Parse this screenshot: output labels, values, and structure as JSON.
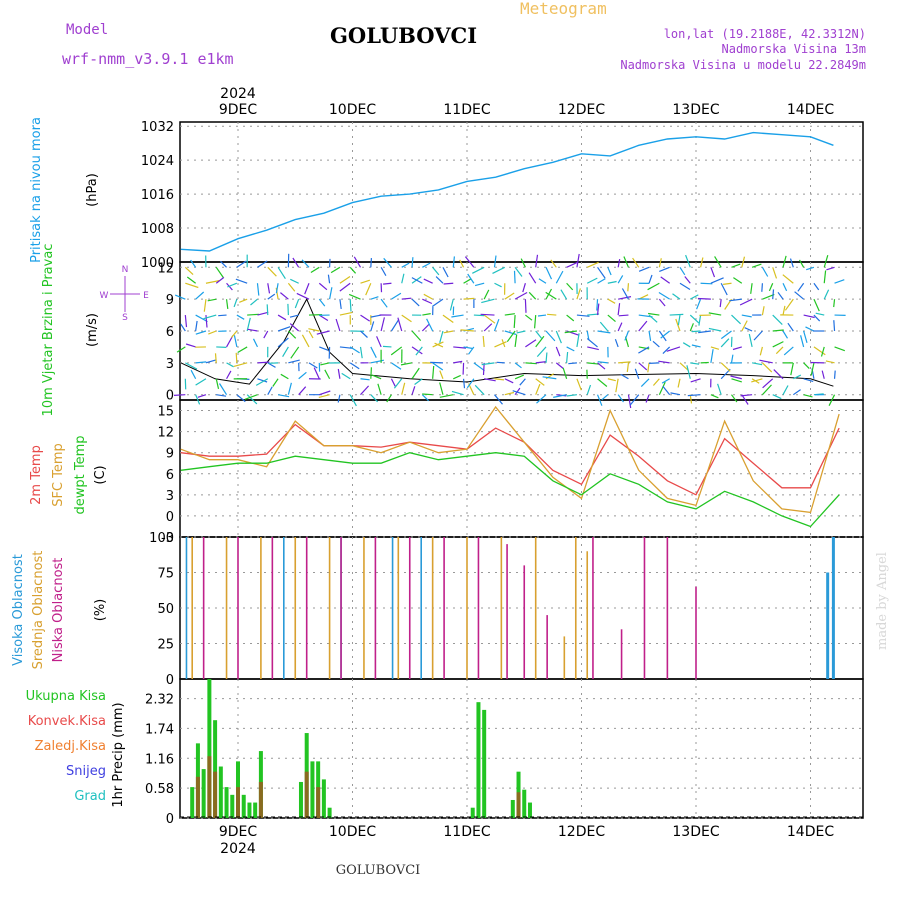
{
  "header": {
    "model_label": "Model",
    "model_name": "wrf-nmm_v3.9.1  e1km",
    "location": "GOLUBOVCI",
    "meteogram": "Meteogram",
    "coords": "lon,lat (19.2188E, 42.3312N)",
    "elevation": "Nadmorska Visina 13m",
    "model_elevation": "Nadmorska Visina u modelu 22.2849m",
    "year_top": "2024",
    "year_bottom": "2024",
    "footer": "GOLUBOVCI",
    "credit": "made by Angel"
  },
  "colors": {
    "pressure": "#1aa0e8",
    "temp2m": "#e84a4a",
    "sfc_temp": "#d9a030",
    "dewpt": "#22c422",
    "high_cloud": "#2a9ad8",
    "mid_cloud": "#d8a030",
    "low_cloud": "#c0208a",
    "total_precip": "#22c422",
    "conv_precip": "#8a6a20",
    "purple_text": "#a040d0",
    "orange_text": "#f0c060"
  },
  "chart_data": [
    {
      "type": "line",
      "title": "Pritisak na nivou mora",
      "ylabel": "(hPa)",
      "ylim": [
        1000,
        1033
      ],
      "yticks": [
        "1000",
        "1008",
        "1016",
        "1024",
        "1032"
      ],
      "xlabels": [
        "9DEC",
        "10DEC",
        "11DEC",
        "12DEC",
        "13DEC",
        "14DEC"
      ],
      "series": [
        {
          "x": [
            0.5,
            0.75,
            1.0,
            1.25,
            1.5,
            1.75,
            2.0,
            2.25,
            2.5,
            2.75,
            3.0,
            3.25,
            3.5,
            3.75,
            4.0,
            4.25,
            4.5,
            4.75,
            5.0,
            5.25,
            5.5,
            5.75,
            6.0,
            6.2
          ],
          "values": [
            1003,
            1002.6,
            1005.5,
            1007.5,
            1010,
            1011.5,
            1014,
            1015.5,
            1016,
            1017,
            1019,
            1020,
            1022,
            1023.5,
            1025.5,
            1025,
            1027.5,
            1029,
            1029.5,
            1029,
            1030.5,
            1030,
            1029.5,
            1027.5
          ]
        }
      ]
    },
    {
      "type": "line",
      "title": "10m Vjetar Brzina i Pravac",
      "ylabel": "(m/s)",
      "ylim": [
        -0.5,
        12.5
      ],
      "yticks": [
        "0",
        "3",
        "6",
        "9",
        "12"
      ],
      "compass": [
        "N",
        "S",
        "W",
        "E"
      ],
      "series": [
        {
          "name": "speed",
          "x": [
            0.5,
            0.8,
            1.1,
            1.4,
            1.6,
            1.8,
            2.0,
            2.5,
            3.0,
            3.5,
            4.0,
            4.5,
            5.0,
            5.5,
            6.0,
            6.2
          ],
          "values": [
            3,
            1.5,
            1,
            5,
            9,
            4,
            2,
            1.5,
            1.2,
            2,
            1.8,
            1.9,
            2,
            1.8,
            1.5,
            0.8
          ]
        }
      ]
    },
    {
      "type": "line",
      "ylabel": "(C)",
      "ylim": [
        -3,
        16.5
      ],
      "yticks": [
        "-3",
        "0",
        "3",
        "6",
        "9",
        "12",
        "15"
      ],
      "series": [
        {
          "name": "2m Temp",
          "x": [
            0.5,
            0.75,
            1.0,
            1.25,
            1.5,
            1.75,
            2.0,
            2.25,
            2.5,
            2.75,
            3.0,
            3.25,
            3.5,
            3.75,
            4.0,
            4.25,
            4.5,
            4.75,
            5.0,
            5.25,
            5.5,
            5.75,
            6.0,
            6.25
          ],
          "values": [
            9,
            8.5,
            8.5,
            8.8,
            13,
            10,
            10,
            9.8,
            10.5,
            10,
            9.5,
            12.5,
            10.5,
            6.5,
            4.5,
            11.5,
            8.5,
            5,
            3,
            11,
            7.5,
            4,
            4,
            12.5
          ]
        },
        {
          "name": "SFC Temp",
          "x": [
            0.5,
            0.75,
            1.0,
            1.25,
            1.5,
            1.75,
            2.0,
            2.25,
            2.5,
            2.75,
            3.0,
            3.25,
            3.5,
            3.75,
            4.0,
            4.25,
            4.5,
            4.75,
            5.0,
            5.25,
            5.5,
            5.75,
            6.0,
            6.25
          ],
          "values": [
            9.5,
            8,
            8,
            7,
            13.5,
            10,
            10,
            9,
            10.5,
            9,
            9.5,
            15.5,
            10.5,
            5.5,
            2.5,
            15,
            6.5,
            2.5,
            1.5,
            13.5,
            5,
            1,
            0.5,
            14.5
          ]
        },
        {
          "name": "dewpt Temp",
          "x": [
            0.5,
            0.75,
            1.0,
            1.25,
            1.5,
            1.75,
            2.0,
            2.25,
            2.5,
            2.75,
            3.0,
            3.25,
            3.5,
            3.75,
            4.0,
            4.25,
            4.5,
            4.75,
            5.0,
            5.25,
            5.5,
            5.75,
            6.0,
            6.25
          ],
          "values": [
            6.5,
            7,
            7.5,
            7.5,
            8.5,
            8,
            7.5,
            7.5,
            9,
            8,
            8.5,
            9,
            8.5,
            5,
            3,
            6,
            4.5,
            2,
            1,
            3.5,
            2,
            0,
            -1.5,
            3
          ]
        }
      ]
    },
    {
      "type": "bar",
      "ylabel": "(%)",
      "ylim": [
        0,
        100
      ],
      "yticks": [
        "0",
        "25",
        "50",
        "75",
        "100"
      ],
      "series": [
        {
          "name": "Visoka Oblacnost",
          "x": [
            0.55,
            1.4,
            1.9,
            2.35,
            2.6,
            6.15,
            6.2
          ],
          "values": [
            100,
            100,
            100,
            100,
            100,
            75,
            100
          ]
        },
        {
          "name": "Srednja Oblacnost",
          "x": [
            0.6,
            0.9,
            1.2,
            1.5,
            1.8,
            2.1,
            2.4,
            2.7,
            3.0,
            3.3,
            3.6,
            3.85,
            3.95,
            4.05
          ],
          "values": [
            100,
            100,
            100,
            100,
            100,
            100,
            100,
            100,
            100,
            100,
            100,
            30,
            100,
            90
          ]
        },
        {
          "name": "Niska Oblacnost",
          "x": [
            0.7,
            1.0,
            1.3,
            1.6,
            1.9,
            2.2,
            2.5,
            2.8,
            3.1,
            3.35,
            3.5,
            3.7,
            4.1,
            4.35,
            4.55,
            4.75,
            5.0
          ],
          "values": [
            100,
            100,
            100,
            100,
            100,
            100,
            100,
            100,
            100,
            95,
            80,
            45,
            100,
            35,
            100,
            100,
            65
          ]
        }
      ]
    },
    {
      "type": "bar",
      "ylabel": "1hr Precip (mm)",
      "ylim": [
        0,
        2.7
      ],
      "yticks": [
        "0",
        "0.58",
        "1.16",
        "1.74",
        "2.32"
      ],
      "legend": [
        "Ukupna Kisa",
        "Konvek.Kisa",
        "Zaledj.Kisa",
        "Snijeg",
        "Grad"
      ],
      "series": [
        {
          "name": "Ukupna Kisa",
          "x": [
            0.6,
            0.65,
            0.7,
            0.75,
            0.8,
            0.85,
            0.9,
            0.95,
            1.0,
            1.05,
            1.1,
            1.15,
            1.2,
            1.55,
            1.6,
            1.65,
            1.7,
            1.75,
            1.8,
            3.05,
            3.1,
            3.15,
            3.4,
            3.45,
            3.5,
            3.55
          ],
          "values": [
            0.6,
            1.45,
            0.95,
            2.7,
            1.9,
            1.0,
            0.6,
            0.45,
            1.1,
            0.45,
            0.3,
            0.3,
            1.3,
            0.7,
            1.65,
            1.1,
            1.1,
            0.75,
            0.2,
            0.2,
            2.25,
            2.1,
            0.35,
            0.9,
            0.55,
            0.3
          ]
        },
        {
          "name": "Konvek.Kisa",
          "x": [
            0.65,
            0.75,
            0.8,
            1.0,
            1.2,
            1.6,
            1.7,
            3.45
          ],
          "values": [
            0.8,
            1.2,
            0.9,
            0.6,
            0.7,
            0.9,
            0.6,
            0.5
          ]
        }
      ]
    }
  ]
}
